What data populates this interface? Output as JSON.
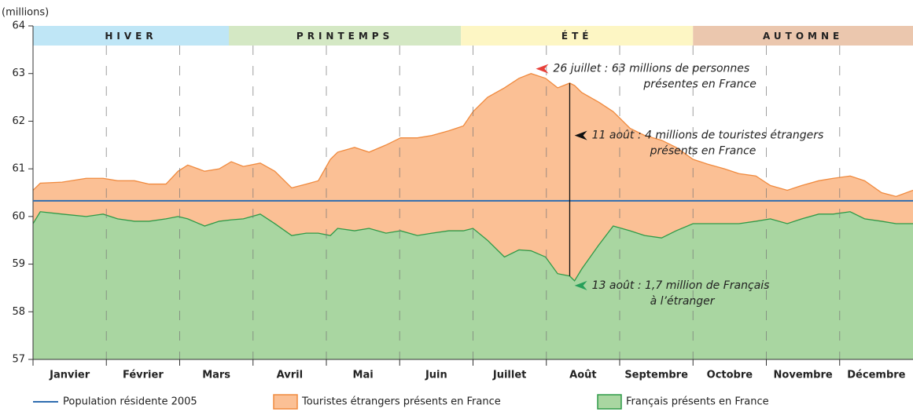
{
  "chart_data": {
    "type": "area",
    "y_label": "(millions)",
    "ylim": [
      57,
      64
    ],
    "yticks": [
      57,
      58,
      59,
      60,
      61,
      62,
      63,
      64
    ],
    "xlim": [
      1,
      365
    ],
    "categories": [
      "Janvier",
      "Février",
      "Mars",
      "Avril",
      "Mai",
      "Juin",
      "Juillet",
      "Août",
      "Septembre",
      "Octobre",
      "Novembre",
      "Décembre"
    ],
    "seasons": [
      {
        "name": "HIVER",
        "start": 1,
        "end": 82,
        "color": "#bfe6f6",
        "text_color": "#2ea7dc"
      },
      {
        "name": "PRINTEMPS",
        "start": 82,
        "end": 178,
        "color": "#d4e8c4",
        "text_color": "#6dbb45"
      },
      {
        "name": "ÉTÉ",
        "start": 178,
        "end": 274,
        "color": "#fdf6c4",
        "text_color": "#f2c200"
      },
      {
        "name": "AUTOMNE",
        "start": 274,
        "end": 365,
        "color": "#ebc7ae",
        "text_color": "#c9714a"
      }
    ],
    "x": [
      1,
      4,
      13,
      23,
      30,
      36,
      43,
      49,
      56,
      61,
      65,
      72,
      78,
      83,
      88,
      95,
      101,
      108,
      114,
      119,
      124,
      127,
      134,
      140,
      147,
      153,
      160,
      166,
      173,
      179,
      183,
      189,
      196,
      202,
      207,
      213,
      218,
      223,
      225,
      228,
      235,
      241,
      248,
      254,
      261,
      267,
      274,
      280,
      287,
      293,
      300,
      306,
      313,
      319,
      326,
      332,
      339,
      345,
      352,
      358,
      365
    ],
    "series": [
      {
        "name": "Touristes étrangers présents en France",
        "color": "#f08a3e",
        "fill": "#fbc095",
        "values": [
          60.55,
          60.7,
          60.72,
          60.8,
          60.8,
          60.75,
          60.75,
          60.68,
          60.68,
          60.95,
          61.08,
          60.95,
          61.0,
          61.15,
          61.05,
          61.12,
          60.95,
          60.6,
          60.68,
          60.75,
          61.2,
          61.35,
          61.45,
          61.35,
          61.5,
          61.65,
          61.65,
          61.7,
          61.8,
          61.9,
          62.2,
          62.5,
          62.7,
          62.9,
          63.0,
          62.9,
          62.7,
          62.8,
          62.75,
          62.6,
          62.4,
          62.2,
          61.85,
          61.7,
          61.6,
          61.45,
          61.2,
          61.1,
          61.0,
          60.9,
          60.85,
          60.65,
          60.55,
          60.65,
          60.75,
          60.8,
          60.85,
          60.75,
          60.5,
          60.42,
          60.55
        ]
      },
      {
        "name": "Français présents en France",
        "color": "#2f9a48",
        "fill": "#a9d6a1",
        "values": [
          59.85,
          60.1,
          60.05,
          60.0,
          60.05,
          59.95,
          59.9,
          59.9,
          59.95,
          60.0,
          59.95,
          59.8,
          59.9,
          59.93,
          59.95,
          60.05,
          59.85,
          59.6,
          59.65,
          59.65,
          59.6,
          59.75,
          59.7,
          59.75,
          59.65,
          59.7,
          59.6,
          59.65,
          59.7,
          59.7,
          59.75,
          59.5,
          59.15,
          59.3,
          59.28,
          59.15,
          58.8,
          58.75,
          58.65,
          58.9,
          59.4,
          59.8,
          59.7,
          59.6,
          59.55,
          59.7,
          59.85,
          59.85,
          59.85,
          59.85,
          59.9,
          59.95,
          59.85,
          59.95,
          60.05,
          60.05,
          60.1,
          59.95,
          59.9,
          59.85,
          59.85
        ]
      }
    ],
    "reference_line": {
      "name": "Population résidente 2005",
      "value": 60.33,
      "color": "#2f6db0"
    },
    "annotations": [
      {
        "lines": [
          "26 juillet : 63 millions de personnes",
          "présentes en France"
        ],
        "x": 209,
        "y": 63.1,
        "color": "#e8413a"
      },
      {
        "lines": [
          "11 août : 4 millions de touristes étrangers",
          "présents en France"
        ],
        "x": 225,
        "y": 61.7,
        "color": "#111111"
      },
      {
        "lines": [
          "13 août : 1,7 million de Français",
          "à l’étranger"
        ],
        "x": 225,
        "y": 58.55,
        "color": "#27a05a"
      }
    ]
  }
}
